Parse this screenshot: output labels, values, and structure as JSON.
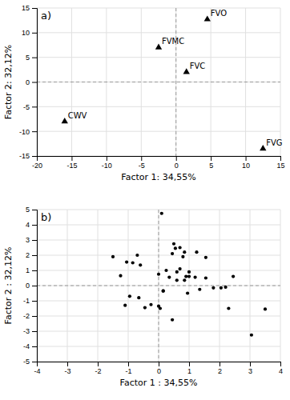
{
  "chart_data": [
    {
      "type": "scatter",
      "title": "a)",
      "point_labels": [
        "FVO",
        "FVMC",
        "FVC",
        "CWV",
        "FVG"
      ],
      "x": [
        4.5,
        -2.5,
        1.5,
        -16.0,
        12.5
      ],
      "values": [
        12.7,
        7.0,
        2.0,
        -8.0,
        -13.5
      ],
      "color": "#000000",
      "marker": "triangle",
      "xlim": [
        -20,
        15
      ],
      "ylim": [
        -15,
        15
      ],
      "xticks": [
        -20,
        -15,
        -10,
        -5,
        0,
        5,
        10,
        15
      ],
      "yticks": [
        -15,
        -10,
        -5,
        0,
        5,
        10,
        15
      ],
      "xlabel": "Factor 1: 34,55%",
      "ylabel": "Factor 2: 32,12%",
      "grid": true,
      "reference_lines": [
        {
          "axis": "y",
          "value": 0
        },
        {
          "axis": "x",
          "value": 0
        }
      ]
    },
    {
      "type": "scatter",
      "title": "b)",
      "x": [
        0.1,
        0.5,
        0.7,
        0.85,
        1.0,
        0.6,
        0.9,
        1.2,
        1.55,
        1.8,
        2.2,
        2.45,
        0.0,
        0.25,
        0.6,
        0.15,
        0.45,
        -0.6,
        -0.85,
        -1.05,
        -1.25,
        -0.95,
        -0.65,
        -1.1,
        -0.25,
        0.05,
        -0.45,
        0.55,
        1.25,
        0.45,
        0.95,
        2.3,
        3.05,
        3.5,
        -1.5,
        -0.7,
        0.15,
        1.35,
        0.85,
        1.55,
        2.05,
        0.0,
        0.7,
        1.0,
        0.35,
        0.8
      ],
      "values": [
        4.75,
        2.75,
        2.5,
        2.2,
        0.9,
        0.35,
        0.6,
        0.55,
        0.5,
        -0.15,
        -0.1,
        0.6,
        0.75,
        1.0,
        0.9,
        -0.35,
        2.1,
        1.35,
        1.5,
        1.55,
        0.65,
        -0.7,
        -0.8,
        -1.3,
        -1.25,
        -1.5,
        -1.45,
        2.45,
        2.2,
        -2.25,
        -0.5,
        -1.5,
        -3.25,
        -1.55,
        1.9,
        2.0,
        -0.35,
        -0.25,
        0.35,
        1.85,
        -0.15,
        -1.35,
        1.1,
        0.6,
        0.55,
        1.9
      ],
      "color": "#000000",
      "marker": "circle",
      "xlim": [
        -4,
        4
      ],
      "ylim": [
        -5,
        5
      ],
      "xticks": [
        -4,
        -3,
        -2,
        -1,
        0,
        1,
        2,
        3,
        4
      ],
      "yticks": [
        -5,
        -4,
        -3,
        -2,
        -1,
        0,
        1,
        2,
        3,
        4,
        5
      ],
      "xlabel": "Factor 1 : 34,55%",
      "ylabel": "Factor 2 : 32,12%",
      "grid": true,
      "reference_lines": [
        {
          "axis": "y",
          "value": 0
        },
        {
          "axis": "x",
          "value": 0
        }
      ]
    }
  ]
}
